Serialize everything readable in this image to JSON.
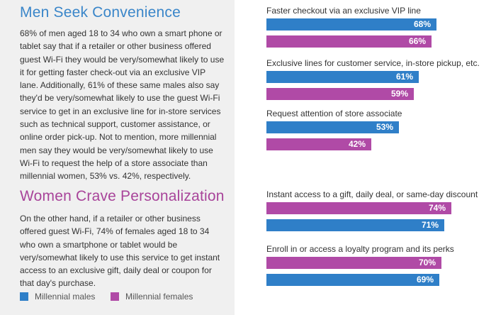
{
  "colors": {
    "males": "#2f7fc8",
    "females": "#b04aa6",
    "panel_bg": "#f0f0f0"
  },
  "men_section": {
    "title": "Men Seek Convenience",
    "body": "68% of men aged 18 to 34 who own a smart phone or tablet say that if a retailer or other business offered guest Wi-Fi they would be very/somewhat likely to use it for getting faster check-out via an exclusive VIP lane. Additionally, 61% of these same males also say they'd be very/somewhat likely to use the guest Wi-Fi service to get in an exclusive line for in-store services such as technical support, customer assistance, or online order pick-up. Not to mention, more millennial men say they would be very/somewhat likely to use Wi-Fi to request the help of a store associate than millennial women, 53% vs. 42%, respectively."
  },
  "women_section": {
    "title": "Women Crave Personalization",
    "body": "On the other hand, if a retailer or other business offered guest Wi-Fi, 74% of females aged 18 to 34 who own a smartphone or tablet would be very/somewhat likely to use this service to get instant access to an exclusive gift, daily deal or coupon for that day's purchase."
  },
  "legend": {
    "males_label": "Millennial males",
    "females_label": "Millennial females"
  },
  "chart_data": {
    "type": "bar",
    "orientation": "horizontal",
    "unit": "%",
    "xlim": [
      0,
      100
    ],
    "series": [
      {
        "name": "Millennial males",
        "color": "#2f7fc8"
      },
      {
        "name": "Millennial females",
        "color": "#b04aa6"
      }
    ],
    "categories": [
      {
        "label": "Faster checkout via an exclusive VIP line",
        "bars": [
          {
            "series": "Millennial males",
            "value": 68,
            "label": "68%"
          },
          {
            "series": "Millennial females",
            "value": 66,
            "label": "66%"
          }
        ]
      },
      {
        "label": "Exclusive lines for customer service, in-store pickup, etc.",
        "bars": [
          {
            "series": "Millennial males",
            "value": 61,
            "label": "61%"
          },
          {
            "series": "Millennial females",
            "value": 59,
            "label": "59%"
          }
        ]
      },
      {
        "label": "Request attention of store associate",
        "bars": [
          {
            "series": "Millennial males",
            "value": 53,
            "label": "53%"
          },
          {
            "series": "Millennial females",
            "value": 42,
            "label": "42%"
          }
        ]
      },
      {
        "label": "Instant access to a gift, daily deal, or same-day discount",
        "bars": [
          {
            "series": "Millennial females",
            "value": 74,
            "label": "74%"
          },
          {
            "series": "Millennial males",
            "value": 71,
            "label": "71%"
          }
        ]
      },
      {
        "label": "Enroll in or access a loyalty program and its perks",
        "bars": [
          {
            "series": "Millennial females",
            "value": 70,
            "label": "70%"
          },
          {
            "series": "Millennial males",
            "value": 69,
            "label": "69%"
          }
        ]
      }
    ]
  }
}
